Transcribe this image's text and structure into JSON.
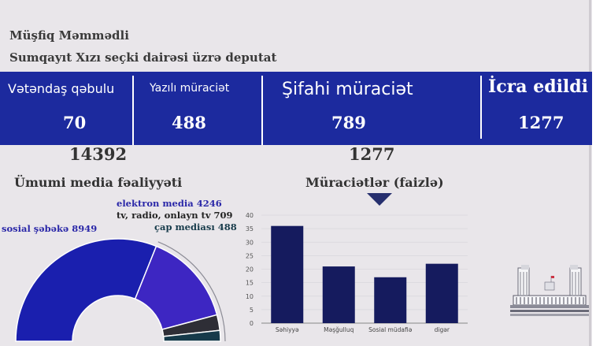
{
  "header": {
    "name": "Müşfiq Məmmədli",
    "role": "Sumqayıt Xızı seçki dairəsi üzrə deputat"
  },
  "stats": [
    {
      "label": "Vətəndaş qəbulu",
      "value": "70"
    },
    {
      "label": "Yazılı müraciət",
      "value": "488"
    },
    {
      "label": "Şifahi müraciət",
      "value": "789"
    },
    {
      "label": "İcra edildi",
      "value": "1277"
    }
  ],
  "totals": {
    "left": "14392",
    "right": "1277"
  },
  "sections": {
    "media_title": "Ümumi media fəaliyyəti",
    "appeals_title": "Müraciətlər (faizlə)"
  },
  "colors": {
    "band": "#1c2a9e",
    "bar": "#151b5e",
    "social": "#1a1fae",
    "electronic": "#3d26c2",
    "tv": "#2e2e36",
    "print": "#163a4a"
  },
  "chart_data": [
    {
      "type": "pie",
      "title": "Ümumi media fəaliyyəti",
      "slices": [
        {
          "name": "sosial şəbəkə",
          "value": 8949,
          "label": "sosial şəbəkə 8949",
          "color": "#1a1fae"
        },
        {
          "name": "elektron media",
          "value": 4246,
          "label": "elektron media 4246",
          "color": "#3d26c2"
        },
        {
          "name": "tv, radio, onlayn tv",
          "value": 709,
          "label": "tv, radio, onlayn tv 709",
          "color": "#2e2e36"
        },
        {
          "name": "çap mediası",
          "value": 488,
          "label": "çap mediası 488",
          "color": "#163a4a"
        }
      ]
    },
    {
      "type": "bar",
      "title": "Müraciətlər (faizlə)",
      "categories": [
        "Səhiyyə",
        "Məşğulluq",
        "Sosial müdafiə",
        "digər"
      ],
      "values": [
        36,
        21,
        17,
        22
      ],
      "ylim": [
        0,
        40
      ],
      "yticks": [
        "0",
        "5",
        "10",
        "15",
        "20",
        "25",
        "30",
        "35",
        "40"
      ],
      "grid": true
    }
  ],
  "icons": {
    "building": "parliament-building-icon"
  }
}
